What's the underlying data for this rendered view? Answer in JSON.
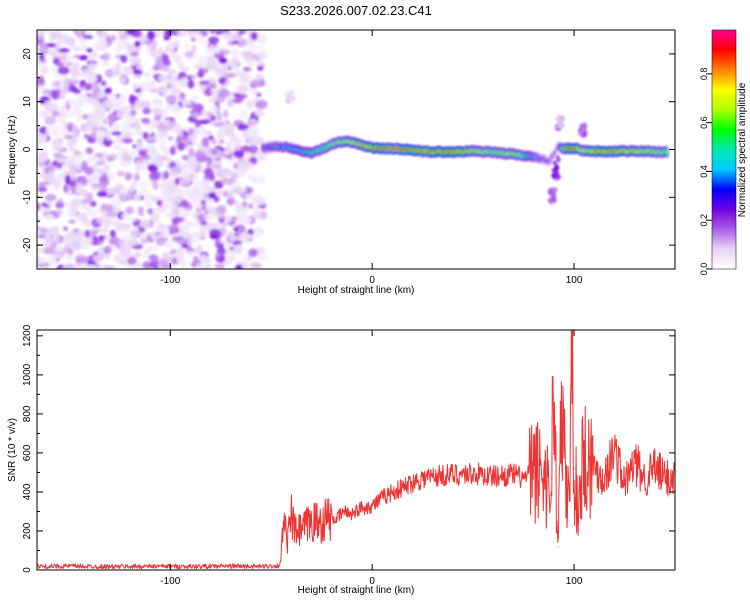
{
  "title": "S233.2026.007.02.23.C41",
  "chart_data": [
    {
      "type": "heatmap",
      "xlabel": "Height of straight line (km)",
      "ylabel": "Frequency (Hz)",
      "xlim": [
        -166,
        150
      ],
      "ylim": [
        -25,
        25
      ],
      "xticks": [
        -100,
        0,
        100
      ],
      "yticks": [
        -20,
        -10,
        0,
        10,
        20
      ],
      "colorbar": {
        "label": "Normalized spectral amplitude",
        "range": [
          0,
          1
        ],
        "ticks": [
          "0.0",
          "0.2",
          "0.4",
          "0.6",
          "0.8"
        ],
        "colormap": [
          "#ffffff",
          "#e8d4f5",
          "#a95ce6",
          "#7000e0",
          "#0000ff",
          "#00ccff",
          "#00e8b0",
          "#00ff00",
          "#b0ff00",
          "#ffff00",
          "#ff8000",
          "#ff0000",
          "#ff0090"
        ]
      },
      "noise_region_x": [
        -166,
        -54
      ],
      "noise_amplitude_range": [
        0.0,
        0.25
      ],
      "band_trace": {
        "x": [
          -54,
          -48,
          -42,
          -36,
          -30,
          -24,
          -18,
          -12,
          -6,
          0,
          6,
          12,
          18,
          24,
          30,
          40,
          50,
          60,
          70,
          78,
          84,
          88,
          92,
          96,
          100,
          104,
          110,
          120,
          130,
          140,
          146
        ],
        "frequency": [
          0.3,
          0.6,
          0.5,
          -0.3,
          -0.8,
          0.2,
          1.4,
          1.8,
          1.0,
          0.4,
          0.2,
          0.2,
          -0.1,
          -0.3,
          -0.5,
          -0.5,
          -0.3,
          -0.6,
          -1.0,
          -1.4,
          -2.0,
          -2.5,
          0.5,
          0.2,
          0.3,
          -0.2,
          -0.4,
          -0.4,
          -0.3,
          -0.5,
          -0.5
        ],
        "amplitude": [
          0.35,
          0.4,
          0.45,
          0.5,
          0.55,
          0.6,
          0.65,
          0.7,
          0.75,
          0.82,
          0.9,
          0.95,
          0.88,
          0.8,
          0.82,
          0.85,
          0.75,
          0.65,
          0.7,
          0.5,
          0.3,
          0.25,
          0.2,
          0.9,
          0.85,
          0.7,
          0.8,
          0.8,
          0.75,
          0.7,
          0.65
        ]
      },
      "spread_features": [
        {
          "x": 91,
          "frequency_range": [
            -6,
            -1
          ],
          "amplitude": 0.2
        },
        {
          "x": 89,
          "frequency_range": [
            -11,
            -8
          ],
          "amplitude": 0.15
        },
        {
          "x": 93,
          "frequency_range": [
            4,
            7
          ],
          "amplitude": 0.12
        },
        {
          "x": 104,
          "frequency_range": [
            3,
            5
          ],
          "amplitude": 0.15
        },
        {
          "x": -41,
          "frequency_range": [
            10,
            12
          ],
          "amplitude": 0.05
        }
      ]
    },
    {
      "type": "line",
      "xlabel": "Height of straight line (km)",
      "ylabel": "SNR (10 * v/v)",
      "xlim": [
        -166,
        150
      ],
      "ylim": [
        0,
        1230
      ],
      "xticks": [
        -100,
        0,
        100
      ],
      "yticks": [
        0,
        200,
        400,
        600,
        800,
        1000,
        1200
      ],
      "series": [
        {
          "name": "SNR",
          "color": "#ee3333",
          "x": [
            -166,
            -150,
            -130,
            -110,
            -90,
            -70,
            -55,
            -46,
            -45,
            -44,
            -42,
            -40,
            -38,
            -34,
            -30,
            -26,
            -22,
            -18,
            -14,
            -10,
            -5,
            0,
            5,
            10,
            15,
            20,
            25,
            30,
            40,
            50,
            60,
            70,
            75,
            80,
            85,
            88,
            90,
            92,
            94,
            96,
            98,
            99,
            100,
            102,
            104,
            106,
            110,
            115,
            120,
            125,
            130,
            135,
            140,
            145,
            150
          ],
          "values": [
            18,
            20,
            17,
            19,
            18,
            20,
            18,
            22,
            80,
            240,
            150,
            270,
            190,
            210,
            250,
            240,
            270,
            260,
            300,
            290,
            320,
            330,
            370,
            400,
            420,
            450,
            470,
            480,
            490,
            495,
            480,
            490,
            470,
            500,
            520,
            380,
            880,
            120,
            850,
            380,
            440,
            1230,
            520,
            300,
            560,
            600,
            520,
            470,
            620,
            440,
            550,
            470,
            520,
            470,
            480
          ]
        }
      ]
    }
  ]
}
